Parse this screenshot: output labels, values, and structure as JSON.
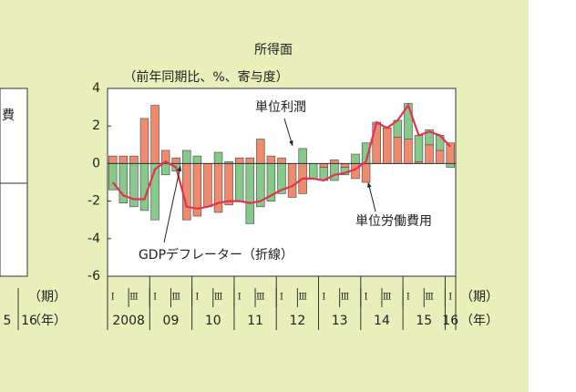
{
  "chart_data": {
    "type": "bar",
    "title": "所得面",
    "subtitle": "（前年同期比、%、寄与度）",
    "categories": [
      "Ⅰ",
      null,
      "Ⅲ",
      null,
      "Ⅰ",
      null,
      "Ⅲ",
      null,
      "Ⅰ",
      null,
      "Ⅲ",
      null,
      "Ⅰ",
      null,
      "Ⅲ",
      null,
      "Ⅰ",
      null,
      "Ⅲ",
      null,
      "Ⅰ",
      null,
      "Ⅲ",
      null,
      "Ⅰ",
      null,
      "Ⅲ",
      null,
      "Ⅰ",
      null,
      "Ⅲ",
      null,
      "Ⅰ"
    ],
    "year_labels": [
      "2008",
      "09",
      "10",
      "11",
      "12",
      "13",
      "14",
      "15",
      "16"
    ],
    "period_unit": "（期）",
    "year_unit": "（年）",
    "ylim": [
      -6,
      4
    ],
    "yticks": [
      -6,
      -4,
      -2,
      0,
      2,
      4
    ],
    "grid": false,
    "series": [
      {
        "name": "単位労働費用",
        "color": "#ef8b6c",
        "values": [
          0.4,
          0.4,
          0.4,
          2.4,
          3.1,
          0.7,
          0.3,
          -3.0,
          -2.8,
          -2.3,
          -2.6,
          -2.2,
          0.3,
          0.3,
          1.3,
          0.4,
          0.3,
          -1.8,
          -1.6,
          0.0,
          -0.2,
          0.2,
          -0.2,
          -0.8,
          -1.0,
          2.1,
          1.9,
          1.4,
          1.3,
          0.1,
          1.0,
          0.7,
          1.1
        ]
      },
      {
        "name": "単位利潤",
        "color": "#86c98a",
        "values": [
          -1.4,
          -2.1,
          -2.3,
          -2.5,
          -3.0,
          -0.6,
          -0.4,
          0.7,
          0.4,
          0.0,
          0.6,
          0.1,
          -2.0,
          -3.2,
          -2.3,
          -2.0,
          -1.6,
          0.0,
          0.8,
          -0.8,
          -0.7,
          -0.9,
          -0.4,
          0.5,
          1.1,
          0.1,
          0.0,
          0.9,
          1.9,
          1.4,
          0.8,
          0.8,
          -0.2
        ]
      },
      {
        "name": "GDPデフレーター（折線）",
        "type": "line",
        "color": "#e2324e",
        "values": [
          -1.0,
          -1.7,
          -1.9,
          -1.9,
          -0.3,
          0.1,
          -0.2,
          -2.3,
          -2.4,
          -2.3,
          -2.1,
          -2.0,
          -2.0,
          -2.1,
          -2.0,
          -1.7,
          -1.4,
          -1.2,
          -0.8,
          -0.8,
          -0.9,
          -0.6,
          -0.5,
          -0.3,
          0.1,
          2.2,
          1.9,
          2.3,
          3.1,
          1.5,
          1.7,
          1.5,
          0.9
        ]
      }
    ]
  },
  "left_fragment": {
    "label": "費",
    "year_tail": "5",
    "year_last": "16",
    "period_unit": "（期）",
    "year_unit": "（年）"
  }
}
